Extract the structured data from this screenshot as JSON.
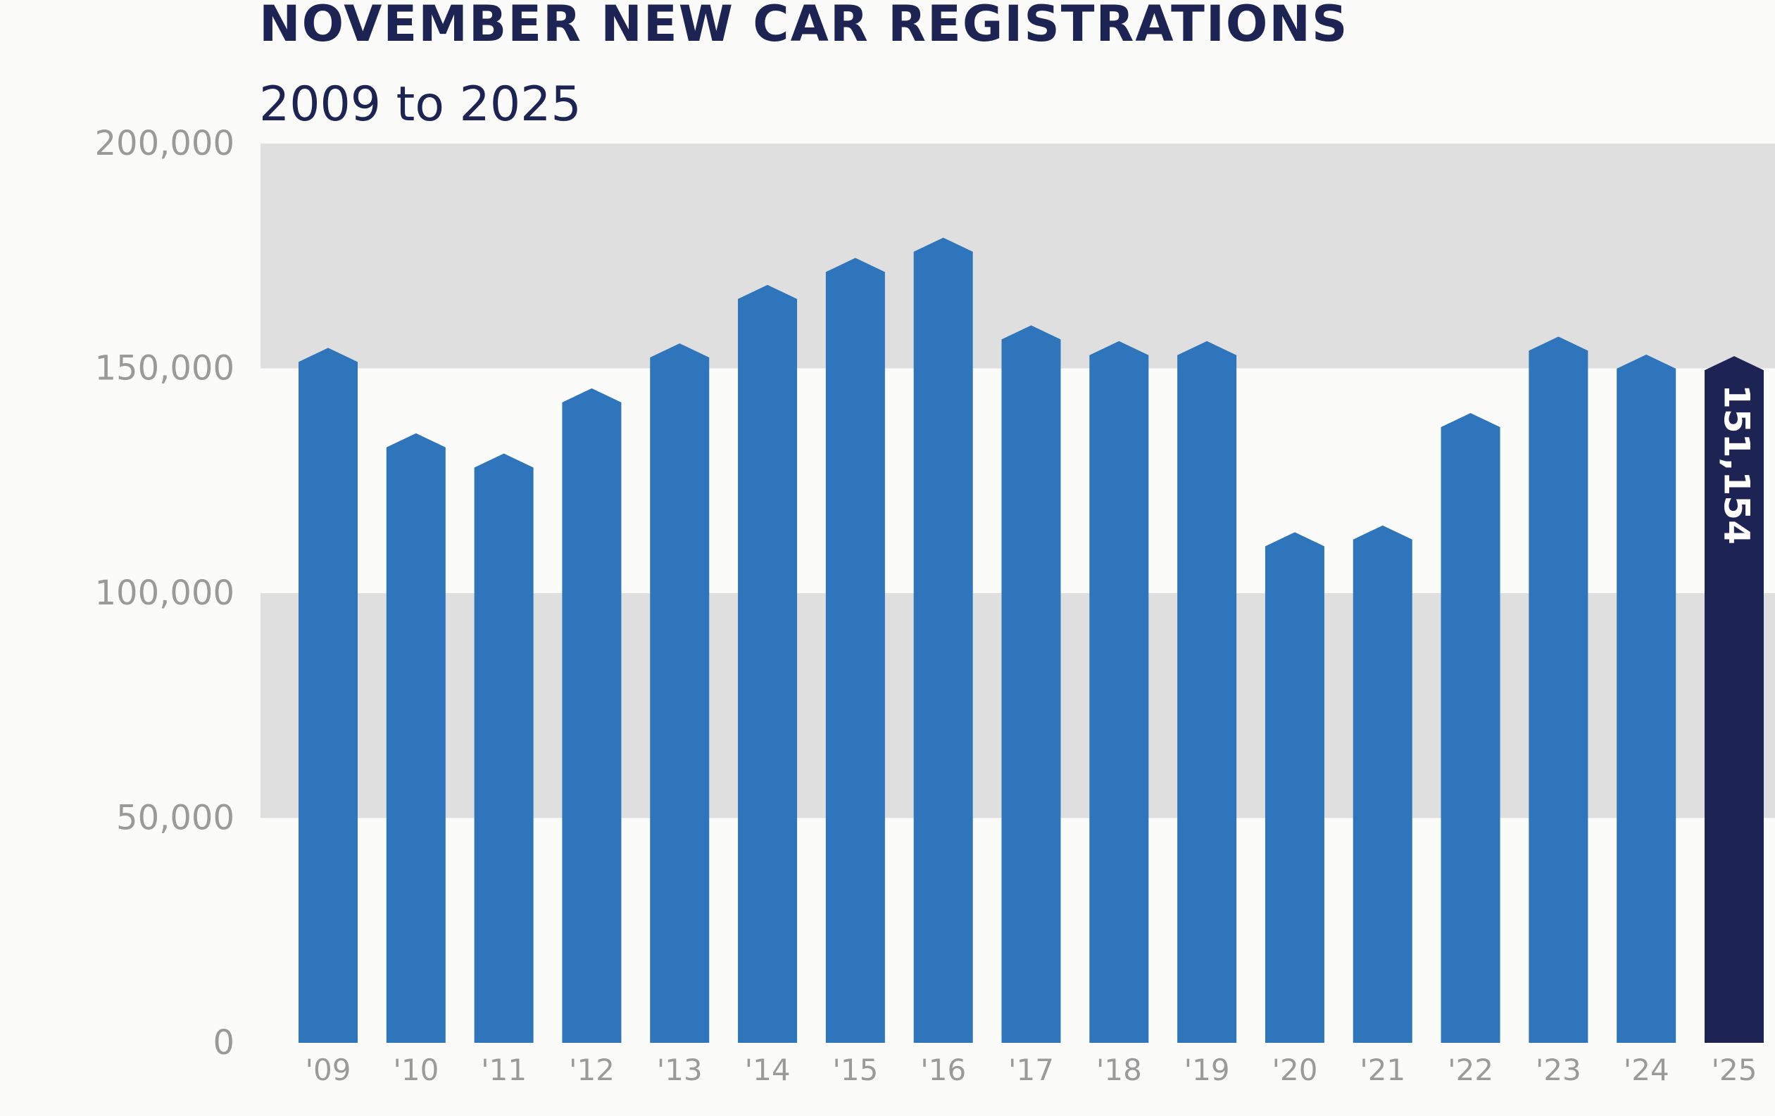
{
  "chart_data": {
    "type": "bar",
    "title": "NOVEMBER NEW CAR REGISTRATIONS",
    "subtitle": "2009 to 2025",
    "categories": [
      "'09",
      "'10",
      "'11",
      "'12",
      "'13",
      "'14",
      "'15",
      "'16",
      "'17",
      "'18",
      "'19",
      "'20",
      "'21",
      "'22",
      "'23",
      "'24",
      "'25"
    ],
    "values": [
      153000,
      134000,
      129500,
      144000,
      154000,
      167000,
      173000,
      177500,
      158000,
      154500,
      154500,
      112000,
      113500,
      138500,
      155500,
      151500,
      151154
    ],
    "ylim": [
      0,
      200000
    ],
    "yticks": [
      "0",
      "50,000",
      "100,000",
      "150,000",
      "200,000"
    ],
    "ytick_values": [
      0,
      50000,
      100000,
      150000,
      200000
    ],
    "grid": "alternating horizontal bands",
    "data_labels": [
      {
        "category": "'25",
        "text": "151,154"
      }
    ],
    "colors": {
      "bar": "#2e75bb",
      "highlight_bar": "#1d2453",
      "band": "#e0dfdf",
      "tick_text": "#9a9a9a",
      "title": "#1d2453"
    },
    "highlight_index": 16
  }
}
